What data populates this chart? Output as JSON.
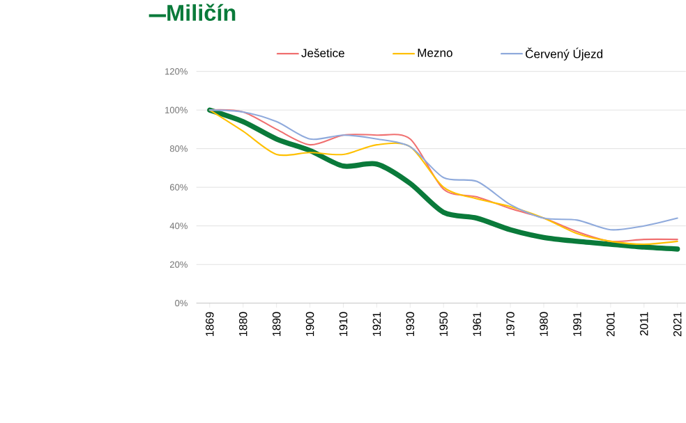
{
  "chart_data": {
    "type": "line",
    "title": "Miličín",
    "categories": [
      "1869",
      "1880",
      "1890",
      "1900",
      "1910",
      "1921",
      "1930",
      "1950",
      "1961",
      "1970",
      "1980",
      "1991",
      "2001",
      "2011",
      "2021"
    ],
    "series": [
      {
        "color": "#0a7a3a",
        "values": [
          100,
          94,
          85,
          79,
          71,
          72,
          62,
          47,
          44,
          38,
          34,
          32,
          30.5,
          29,
          28
        ]
      },
      {
        "name": "Ješetice",
        "color": "#f07070",
        "values": [
          100,
          99,
          90,
          82,
          87,
          87,
          85,
          59,
          55,
          49,
          44,
          37,
          32,
          33,
          33
        ]
      },
      {
        "name": "Mezno",
        "color": "#ffc000",
        "values": [
          100,
          89,
          77,
          78,
          77,
          82,
          81,
          60,
          54,
          50,
          44,
          36,
          32,
          30.5,
          32
        ]
      },
      {
        "name": "Červený Újezd",
        "color": "#8faadc",
        "values": [
          100,
          99,
          94,
          85,
          87,
          85,
          81,
          65,
          63,
          51,
          44,
          43,
          38,
          40,
          44
        ]
      }
    ],
    "ylim": [
      0,
      120
    ],
    "yticks": [
      {
        "value": 0,
        "label": "0%"
      },
      {
        "value": 20,
        "label": "20%"
      },
      {
        "value": 40,
        "label": "40%"
      },
      {
        "value": 60,
        "label": "60%"
      },
      {
        "value": 80,
        "label": "80%"
      },
      {
        "value": 100,
        "label": "100%"
      },
      {
        "value": 120,
        "label": "120%"
      }
    ],
    "grid": "y",
    "legend": "top",
    "marker": "none",
    "line_style": "solid"
  }
}
